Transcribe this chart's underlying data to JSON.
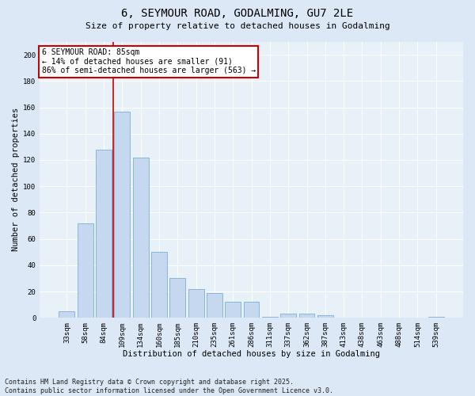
{
  "title_line1": "6, SEYMOUR ROAD, GODALMING, GU7 2LE",
  "title_line2": "Size of property relative to detached houses in Godalming",
  "xlabel": "Distribution of detached houses by size in Godalming",
  "ylabel": "Number of detached properties",
  "categories": [
    "33sqm",
    "58sqm",
    "84sqm",
    "109sqm",
    "134sqm",
    "160sqm",
    "185sqm",
    "210sqm",
    "235sqm",
    "261sqm",
    "286sqm",
    "311sqm",
    "337sqm",
    "362sqm",
    "387sqm",
    "413sqm",
    "438sqm",
    "463sqm",
    "488sqm",
    "514sqm",
    "539sqm"
  ],
  "values": [
    5,
    72,
    128,
    157,
    122,
    50,
    30,
    22,
    19,
    12,
    12,
    1,
    3,
    3,
    2,
    0,
    0,
    0,
    0,
    0,
    1
  ],
  "bar_color": "#c5d8f0",
  "bar_edge_color": "#7aafd4",
  "vline_x": 2.5,
  "annotation_title": "6 SEYMOUR ROAD: 85sqm",
  "annotation_line1": "← 14% of detached houses are smaller (91)",
  "annotation_line2": "86% of semi-detached houses are larger (563) →",
  "annotation_box_color": "#ffffff",
  "annotation_box_edge": "#cc0000",
  "vertical_line_color": "#cc0000",
  "ylim": [
    0,
    210
  ],
  "yticks": [
    0,
    20,
    40,
    60,
    80,
    100,
    120,
    140,
    160,
    180,
    200
  ],
  "footer_line1": "Contains HM Land Registry data © Crown copyright and database right 2025.",
  "footer_line2": "Contains public sector information licensed under the Open Government Licence v3.0.",
  "bg_color": "#dce8f5",
  "plot_bg_color": "#e8f0f8",
  "grid_color": "#ffffff",
  "title_fontsize": 10,
  "subtitle_fontsize": 8,
  "axis_label_fontsize": 7.5,
  "tick_fontsize": 6.5,
  "annotation_fontsize": 7,
  "footer_fontsize": 6
}
